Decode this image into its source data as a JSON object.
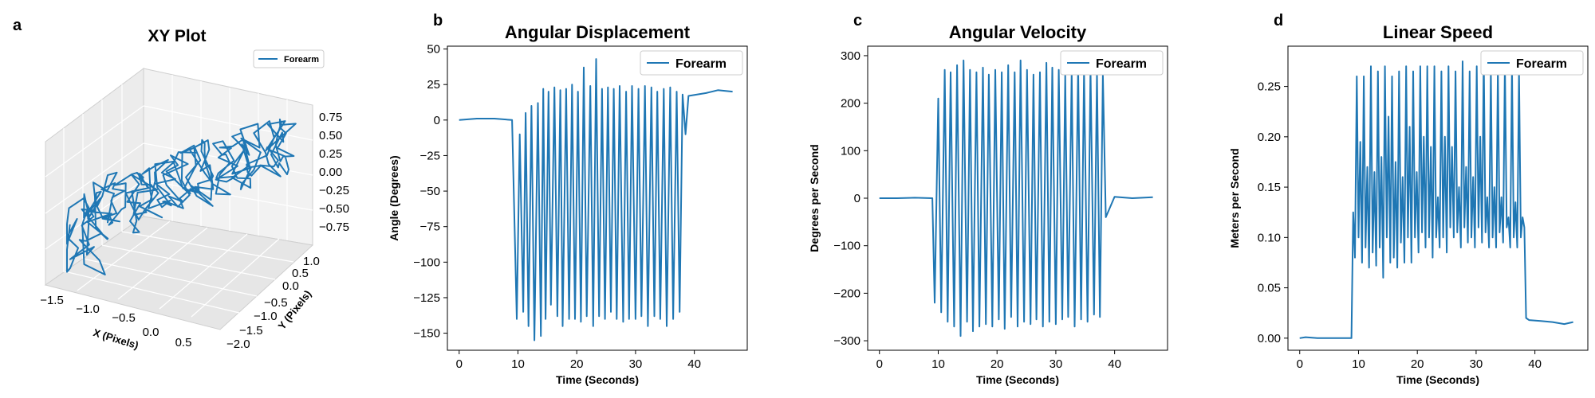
{
  "panels": [
    {
      "label": "a",
      "title": "XY Plot"
    },
    {
      "label": "b",
      "title": "Angular Displacement"
    },
    {
      "label": "c",
      "title": "Angular Velocity"
    },
    {
      "label": "d",
      "title": "Linear Speed"
    }
  ],
  "series_color": "#1f77b4",
  "chart_data": [
    {
      "type": "line3d",
      "title": "XY Plot",
      "xlabel": "X (Pixels)",
      "ylabel": "Y (Pixels)",
      "zlabel": "",
      "legend": [
        "Forearm"
      ],
      "legend_position": "top-right",
      "x_ticks": [
        "−1.5",
        "−1.0",
        "−0.5",
        "0.0",
        "0.5"
      ],
      "y_ticks": [
        "1.0",
        "0.5",
        "0.0",
        "−0.5",
        "−1.0",
        "−1.5",
        "−2.0"
      ],
      "z_ticks": [
        "0.75",
        "0.50",
        "0.25",
        "0.00",
        "−0.25",
        "−0.50",
        "−0.75"
      ],
      "xlim": [
        -1.6,
        0.8
      ],
      "ylim": [
        -2.1,
        1.1
      ],
      "zlim": [
        -0.85,
        0.85
      ],
      "grid": true
    },
    {
      "type": "line",
      "title": "Angular Displacement",
      "xlabel": "Time (Seconds)",
      "ylabel": "Angle (Degrees)",
      "legend": [
        "Forearm"
      ],
      "legend_position": "top-right",
      "xlim": [
        -2,
        49
      ],
      "ylim": [
        -162,
        52
      ],
      "x_ticks": [
        0,
        10,
        20,
        30,
        40
      ],
      "y_ticks": [
        50,
        25,
        0,
        -25,
        -50,
        -75,
        -100,
        -125,
        -150
      ],
      "series": [
        {
          "name": "Forearm",
          "x": [
            0,
            3,
            6,
            9,
            9.8,
            10.3,
            10.9,
            11.3,
            11.8,
            12.3,
            12.8,
            13.4,
            13.9,
            14.3,
            14.7,
            15.2,
            15.6,
            16.2,
            16.7,
            17.2,
            17.6,
            18.2,
            18.7,
            19.2,
            19.7,
            20.2,
            20.7,
            21.2,
            21.7,
            22.3,
            22.8,
            23.3,
            23.8,
            24.3,
            24.8,
            25.3,
            25.8,
            26.3,
            26.8,
            27.3,
            27.9,
            28.4,
            28.9,
            29.4,
            30.0,
            30.5,
            31.0,
            31.6,
            32.1,
            32.7,
            33.2,
            33.7,
            34.2,
            34.8,
            35.3,
            35.9,
            36.4,
            37.0,
            37.5,
            38.0,
            38.5,
            39.0,
            42,
            44,
            46.5
          ],
          "y": [
            0,
            1,
            1,
            0,
            -140,
            -10,
            -135,
            5,
            -145,
            10,
            -155,
            12,
            -152,
            22,
            -140,
            20,
            -130,
            23,
            -138,
            21,
            -145,
            22,
            -140,
            25,
            -140,
            20,
            -142,
            37,
            -138,
            24,
            -145,
            43,
            -138,
            22,
            -140,
            23,
            -135,
            22,
            -140,
            24,
            -142,
            20,
            -140,
            24,
            -140,
            22,
            -138,
            24,
            -145,
            23,
            -138,
            20,
            -140,
            22,
            -145,
            23,
            -140,
            20,
            -135,
            18,
            -10,
            17,
            19,
            21,
            20
          ]
        }
      ]
    },
    {
      "type": "line",
      "title": "Angular Velocity",
      "xlabel": "Time (Seconds)",
      "ylabel": "Degrees per Second",
      "legend": [
        "Forearm"
      ],
      "legend_position": "top-right",
      "xlim": [
        -2,
        49
      ],
      "ylim": [
        -320,
        320
      ],
      "x_ticks": [
        0,
        10,
        20,
        30,
        40
      ],
      "y_ticks": [
        300,
        200,
        100,
        0,
        -100,
        -200,
        -300
      ],
      "series": [
        {
          "name": "Forearm",
          "x": [
            0,
            3,
            6,
            9,
            9.4,
            10.0,
            10.5,
            11.1,
            11.6,
            12.1,
            12.7,
            13.2,
            13.8,
            14.3,
            14.9,
            15.4,
            15.9,
            16.5,
            17.0,
            17.6,
            18.1,
            18.6,
            19.2,
            19.7,
            20.3,
            20.8,
            21.3,
            21.9,
            22.4,
            23.0,
            23.5,
            24.0,
            24.6,
            25.1,
            25.7,
            26.2,
            26.7,
            27.3,
            27.8,
            28.4,
            28.9,
            29.4,
            30.0,
            30.5,
            31.1,
            31.6,
            32.1,
            32.7,
            33.2,
            33.8,
            34.3,
            34.8,
            35.4,
            35.9,
            36.5,
            37.0,
            37.5,
            38.0,
            38.5,
            40,
            43,
            46.5
          ],
          "y": [
            0,
            0,
            1,
            0,
            -220,
            210,
            -240,
            270,
            -260,
            265,
            -270,
            280,
            -290,
            290,
            -260,
            270,
            -280,
            265,
            -270,
            275,
            -265,
            260,
            -270,
            270,
            -255,
            265,
            -275,
            280,
            -250,
            265,
            -270,
            290,
            -260,
            270,
            -265,
            260,
            -255,
            265,
            -270,
            285,
            -260,
            275,
            -265,
            270,
            -255,
            260,
            -250,
            265,
            -270,
            280,
            -255,
            270,
            -260,
            275,
            -245,
            265,
            -250,
            260,
            -40,
            3,
            0,
            2
          ]
        }
      ]
    },
    {
      "type": "line",
      "title": "Linear Speed",
      "xlabel": "Time (Seconds)",
      "ylabel": "Meters per Second",
      "legend": [
        "Forearm"
      ],
      "legend_position": "top-right",
      "xlim": [
        -2,
        49
      ],
      "ylim": [
        -0.012,
        0.29
      ],
      "x_ticks": [
        0,
        10,
        20,
        30,
        40
      ],
      "y_ticks": [
        0.25,
        0.2,
        0.15,
        0.1,
        0.05,
        0.0
      ],
      "series": [
        {
          "name": "Forearm",
          "x": [
            0,
            1,
            3,
            5,
            7,
            8.8,
            9.1,
            9.4,
            9.7,
            10.0,
            10.3,
            10.6,
            10.9,
            11.2,
            11.5,
            11.8,
            12.1,
            12.4,
            12.7,
            13.0,
            13.3,
            13.6,
            13.9,
            14.2,
            14.5,
            14.8,
            15.1,
            15.4,
            15.7,
            16.0,
            16.3,
            16.6,
            16.9,
            17.2,
            17.5,
            17.8,
            18.1,
            18.4,
            18.7,
            19.0,
            19.3,
            19.6,
            19.9,
            20.2,
            20.5,
            20.8,
            21.1,
            21.4,
            21.7,
            22.0,
            22.3,
            22.6,
            22.9,
            23.2,
            23.5,
            23.8,
            24.1,
            24.4,
            24.7,
            25.0,
            25.3,
            25.6,
            25.9,
            26.2,
            26.5,
            26.8,
            27.1,
            27.4,
            27.7,
            28.0,
            28.3,
            28.6,
            28.9,
            29.2,
            29.5,
            29.8,
            30.1,
            30.4,
            30.7,
            31.0,
            31.3,
            31.6,
            31.9,
            32.2,
            32.5,
            32.8,
            33.1,
            33.4,
            33.7,
            34.0,
            34.3,
            34.6,
            34.9,
            35.2,
            35.5,
            35.8,
            36.1,
            36.4,
            36.7,
            37.0,
            37.3,
            37.6,
            37.9,
            38.2,
            38.5,
            39,
            41,
            43,
            45,
            46.5
          ],
          "y": [
            0.0,
            0.001,
            0.0,
            0.0,
            0.0,
            0.0,
            0.125,
            0.08,
            0.26,
            0.1,
            0.195,
            0.075,
            0.26,
            0.09,
            0.17,
            0.07,
            0.27,
            0.085,
            0.165,
            0.072,
            0.265,
            0.09,
            0.18,
            0.06,
            0.27,
            0.1,
            0.22,
            0.075,
            0.26,
            0.08,
            0.175,
            0.07,
            0.265,
            0.095,
            0.16,
            0.075,
            0.27,
            0.1,
            0.21,
            0.075,
            0.265,
            0.1,
            0.165,
            0.085,
            0.27,
            0.105,
            0.2,
            0.09,
            0.27,
            0.1,
            0.19,
            0.08,
            0.27,
            0.1,
            0.14,
            0.09,
            0.265,
            0.1,
            0.2,
            0.085,
            0.27,
            0.11,
            0.19,
            0.1,
            0.265,
            0.105,
            0.15,
            0.09,
            0.275,
            0.11,
            0.17,
            0.095,
            0.265,
            0.1,
            0.16,
            0.09,
            0.27,
            0.11,
            0.2,
            0.095,
            0.28,
            0.105,
            0.14,
            0.09,
            0.265,
            0.1,
            0.15,
            0.09,
            0.27,
            0.105,
            0.14,
            0.095,
            0.275,
            0.11,
            0.12,
            0.09,
            0.27,
            0.1,
            0.135,
            0.09,
            0.265,
            0.1,
            0.12,
            0.11,
            0.02,
            0.018,
            0.017,
            0.016,
            0.014,
            0.016
          ]
        }
      ]
    }
  ]
}
